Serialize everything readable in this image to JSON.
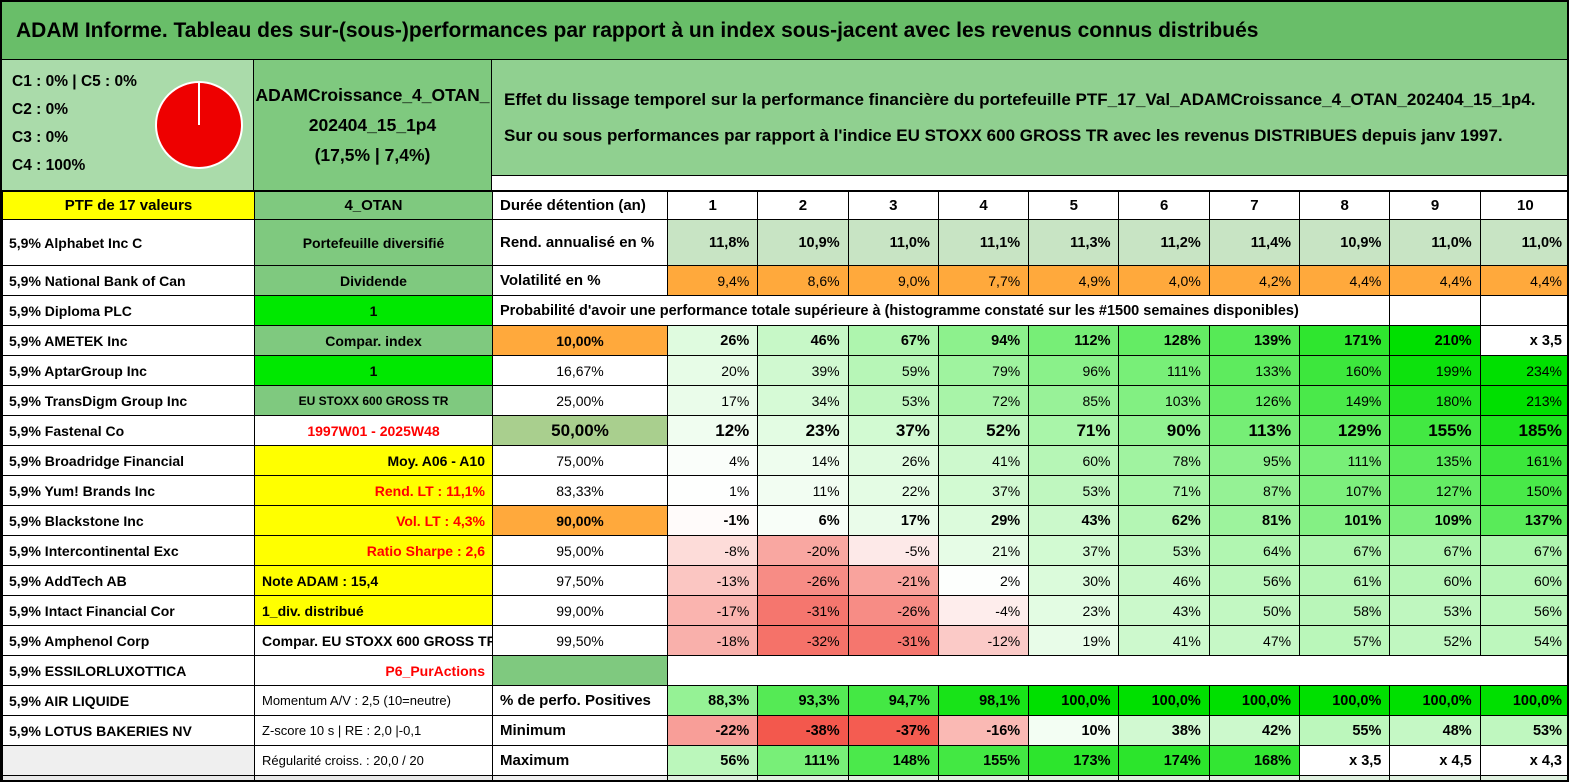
{
  "title": "ADAM Informe. Tableau des sur-(sous-)performances par rapport à un index sous-jacent avec les revenus connus distribués",
  "info": {
    "class_lines": [
      "C1 : 0% | C5 : 0%",
      "C2 : 0%",
      "C3 : 0%",
      "C4 : 100%"
    ],
    "pie_color": "#EE0000",
    "portfolio_lines": [
      "ADAMCroissance_4_OTAN_",
      "202404_15_1p4",
      "(17,5% | 7,4%)"
    ],
    "description_lines": [
      "Effet du lissage temporel sur la performance financière du portefeuille PTF_17_Val_ADAMCroissance_4_OTAN_202404_15_1p4.",
      "Sur ou sous performances par rapport à l'indice EU STOXX 600 GROSS TR avec les revenus DISTRIBUES depuis janv 1997."
    ]
  },
  "header": {
    "ptf": "PTF de 17 valeurs",
    "group": "4_OTAN",
    "duration_label": "Durée détention (an)",
    "years": [
      "1",
      "2",
      "3",
      "4",
      "5",
      "6",
      "7",
      "8",
      "9",
      "10"
    ]
  },
  "probability_note": "Probabilité d'avoir une performance totale supérieure à (histogramme constaté sur les #1500 semaines disponibles)",
  "rows": [
    {
      "name": "5,9% Alphabet Inc C",
      "mid": {
        "text": "Portefeuille diversifié",
        "bg": "#7FC97F",
        "bold": true
      },
      "label": {
        "text": "Rend. annualisé en %",
        "bold": true,
        "align": "left",
        "fs": 15
      },
      "cells": [
        "11,8%",
        "10,9%",
        "11,0%",
        "11,1%",
        "11,3%",
        "11,2%",
        "11,4%",
        "10,9%",
        "11,0%",
        "11,0%"
      ],
      "cellMode": "flat",
      "flatBg": "#C8E4C4",
      "cellsBold": true,
      "height": 46
    },
    {
      "name": "5,9% National Bank of Can",
      "mid": {
        "text": "Dividende",
        "bg": "#7FC97F",
        "bold": true
      },
      "label": {
        "text": "Volatilité en %",
        "bold": true,
        "align": "left",
        "fs": 15
      },
      "cells": [
        "9,4%",
        "8,6%",
        "9,0%",
        "7,7%",
        "4,9%",
        "4,0%",
        "4,2%",
        "4,4%",
        "4,4%",
        "4,4%"
      ],
      "cellMode": "flat",
      "flatBg": "#FFA93C"
    },
    {
      "name": "5,9% Diploma PLC",
      "mid": {
        "text": "1",
        "bg": "#00E800",
        "bold": true
      },
      "merged": "prob"
    },
    {
      "name": "5,9% AMETEK Inc",
      "mid": {
        "text": "Compar. index",
        "bg": "#7FC97F",
        "bold": true
      },
      "label": {
        "text": "10,00%",
        "bg": "#FFA93C",
        "bold": true
      },
      "cells": [
        "26%",
        "46%",
        "67%",
        "94%",
        "112%",
        "128%",
        "139%",
        "171%",
        "210%",
        "x 3,5"
      ],
      "cellsBold": true
    },
    {
      "name": "5,9% AptarGroup Inc",
      "mid": {
        "text": "1",
        "bg": "#00E800",
        "bold": true
      },
      "label": {
        "text": "16,67%"
      },
      "cells": [
        "20%",
        "39%",
        "59%",
        "79%",
        "96%",
        "111%",
        "133%",
        "160%",
        "199%",
        "234%"
      ]
    },
    {
      "name": "5,9% TransDigm Group Inc",
      "mid": {
        "text": "EU STOXX 600 GROSS TR",
        "bg": "#7FC97F",
        "bold": true,
        "fs": 12
      },
      "label": {
        "text": "25,00%"
      },
      "cells": [
        "17%",
        "34%",
        "53%",
        "72%",
        "85%",
        "103%",
        "126%",
        "149%",
        "180%",
        "213%"
      ]
    },
    {
      "name": "5,9% Fastenal Co",
      "mid": {
        "text": "1997W01 - 2025W48",
        "fg": "#FF0000",
        "bold": true
      },
      "label": {
        "text": "50,00%",
        "bg": "#A9CF8E",
        "bold": true,
        "fs": 17
      },
      "cells": [
        "12%",
        "23%",
        "37%",
        "52%",
        "71%",
        "90%",
        "113%",
        "129%",
        "155%",
        "185%"
      ],
      "cellsBold": true,
      "big": true
    },
    {
      "name": "5,9% Broadridge Financial",
      "mid": {
        "text": "Moy. A06 - A10",
        "bg": "#FFFF00",
        "bold": true,
        "align": "right"
      },
      "label": {
        "text": "75,00%"
      },
      "cells": [
        "4%",
        "14%",
        "26%",
        "41%",
        "60%",
        "78%",
        "95%",
        "111%",
        "135%",
        "161%"
      ]
    },
    {
      "name": "5,9% Yum! Brands Inc",
      "mid": {
        "text": "Rend. LT : 11,1%",
        "bg": "#FFFF00",
        "fg": "#FF0000",
        "bold": true,
        "align": "right"
      },
      "label": {
        "text": "83,33%"
      },
      "cells": [
        "1%",
        "11%",
        "22%",
        "37%",
        "53%",
        "71%",
        "87%",
        "107%",
        "127%",
        "150%"
      ]
    },
    {
      "name": "5,9% Blackstone Inc",
      "mid": {
        "text": "Vol. LT : 4,3%",
        "bg": "#FFFF00",
        "fg": "#FF0000",
        "bold": true,
        "align": "right"
      },
      "label": {
        "text": "90,00%",
        "bg": "#FFA93C",
        "bold": true
      },
      "cells": [
        "-1%",
        "6%",
        "17%",
        "29%",
        "43%",
        "62%",
        "81%",
        "101%",
        "109%",
        "137%"
      ],
      "cellsBold": true
    },
    {
      "name": "5,9% Intercontinental Exc",
      "mid": {
        "text": "Ratio Sharpe : 2,6",
        "bg": "#FFFF00",
        "fg": "#FF0000",
        "bold": true,
        "align": "right"
      },
      "label": {
        "text": "95,00%"
      },
      "cells": [
        "-8%",
        "-20%",
        "-5%",
        "21%",
        "37%",
        "53%",
        "64%",
        "67%",
        "67%",
        "67%"
      ]
    },
    {
      "name": "5,9% AddTech AB",
      "mid": {
        "text": "Note ADAM : 15,4",
        "bg": "#FFFF00",
        "bold": true,
        "align": "left"
      },
      "label": {
        "text": "97,50%"
      },
      "cells": [
        "-13%",
        "-26%",
        "-21%",
        "2%",
        "30%",
        "46%",
        "56%",
        "61%",
        "60%",
        "60%"
      ]
    },
    {
      "name": "5,9% Intact Financial Cor",
      "mid": {
        "text": "1_div. distribué",
        "bg": "#FFFF00",
        "bold": true,
        "align": "left"
      },
      "label": {
        "text": "99,00%"
      },
      "cells": [
        "-17%",
        "-31%",
        "-26%",
        "-4%",
        "23%",
        "43%",
        "50%",
        "58%",
        "53%",
        "56%"
      ]
    },
    {
      "name": "5,9% Amphenol Corp",
      "mid": {
        "text": "Compar. EU STOXX 600 GROSS TR",
        "bold": true,
        "align": "left"
      },
      "label": {
        "text": "99,50%"
      },
      "cells": [
        "-18%",
        "-32%",
        "-31%",
        "-12%",
        "19%",
        "41%",
        "47%",
        "57%",
        "52%",
        "54%"
      ]
    },
    {
      "name": "5,9% ESSILORLUXOTTICA",
      "mid": {
        "text": "P6_PurActions",
        "fg": "#FF0000",
        "bold": true,
        "align": "right"
      },
      "label": {
        "text": "",
        "bg": "#7FC97F"
      },
      "merged": "blank10"
    },
    {
      "name": "5,9% AIR LIQUIDE",
      "mid": {
        "text": "Momentum A/V : 2,5 (10=neutre)",
        "align": "left",
        "fs": 13
      },
      "label": {
        "text": "% de perfo. Positives",
        "bold": true,
        "align": "left",
        "fs": 15
      },
      "cells": [
        "88,3%",
        "93,3%",
        "94,7%",
        "98,1%",
        "100,0%",
        "100,0%",
        "100,0%",
        "100,0%",
        "100,0%",
        "100,0%"
      ],
      "cellMode": "pct",
      "cellsBold": true
    },
    {
      "name": "5,9% LOTUS BAKERIES NV",
      "mid": {
        "text": "Z-score 10 s | RE : 2,0 |-0,1",
        "align": "left",
        "fs": 13
      },
      "label": {
        "text": "Minimum",
        "bold": true,
        "align": "left",
        "fs": 15
      },
      "cells": [
        "-22%",
        "-38%",
        "-37%",
        "-16%",
        "10%",
        "38%",
        "42%",
        "55%",
        "48%",
        "53%"
      ],
      "cellsBold": true
    },
    {
      "name": "",
      "nameBg": "#EFEFEF",
      "mid": {
        "text": "Régularité croiss. : 20,0 / 20",
        "align": "left",
        "fs": 13
      },
      "label": {
        "text": "Maximum",
        "bold": true,
        "align": "left",
        "fs": 15
      },
      "cells": [
        "56%",
        "111%",
        "148%",
        "155%",
        "173%",
        "174%",
        "168%",
        "x 3,5",
        "x 4,5",
        "x 4,3"
      ],
      "cellsBold": true
    },
    {
      "name": "",
      "nameBg": "#E8E8E8",
      "mid": {
        "text": "",
        "bg": "#E8E8E8"
      },
      "label": {
        "text": "",
        "bg": "#EFEFEF"
      },
      "cells": [
        "",
        "",
        "",
        "",
        "",
        "",
        "",
        "",
        "",
        ""
      ],
      "cellMode": "flat",
      "flatBg": "#DFF0DF",
      "height": 5,
      "sliver": true
    }
  ]
}
